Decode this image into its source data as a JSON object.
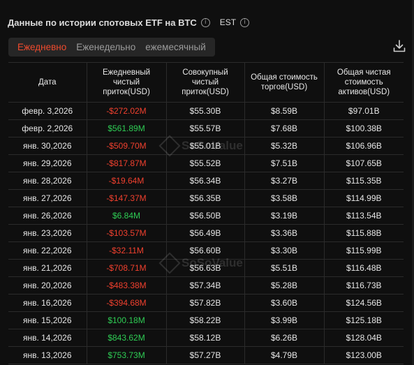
{
  "header": {
    "title": "Данные по истории спотовых ETF на BTC",
    "timezone": "EST"
  },
  "tabs": [
    {
      "label": "Ежедневно",
      "active": true
    },
    {
      "label": "Еженедельно",
      "active": false
    },
    {
      "label": "ежемесячный",
      "active": false
    }
  ],
  "watermark": "SoSoValue",
  "table": {
    "headers": [
      "Дата",
      "Ежедневный чистый приток(USD)",
      "Совокупный чистый приток(USD)",
      "Общая стоимость торгов(USD)",
      "Общая чистая стоимость активов(USD)"
    ],
    "rows": [
      {
        "date": "февр. 3,2026",
        "daily": "-$272.02M",
        "dir": "neg",
        "cum": "$55.30B",
        "traded": "$8.59B",
        "assets": "$97.01B"
      },
      {
        "date": "февр. 2,2026",
        "daily": "$561.89M",
        "dir": "pos",
        "cum": "$55.57B",
        "traded": "$7.68B",
        "assets": "$100.38B"
      },
      {
        "date": "янв. 30,2026",
        "daily": "-$509.70M",
        "dir": "neg",
        "cum": "$55.01B",
        "traded": "$5.32B",
        "assets": "$106.96B"
      },
      {
        "date": "янв. 29,2026",
        "daily": "-$817.87M",
        "dir": "neg",
        "cum": "$55.52B",
        "traded": "$7.51B",
        "assets": "$107.65B"
      },
      {
        "date": "янв. 28,2026",
        "daily": "-$19.64M",
        "dir": "neg",
        "cum": "$56.34B",
        "traded": "$3.27B",
        "assets": "$115.35B"
      },
      {
        "date": "янв. 27,2026",
        "daily": "-$147.37M",
        "dir": "neg",
        "cum": "$56.35B",
        "traded": "$3.58B",
        "assets": "$114.99B"
      },
      {
        "date": "янв. 26,2026",
        "daily": "$6.84M",
        "dir": "pos",
        "cum": "$56.50B",
        "traded": "$3.19B",
        "assets": "$113.54B"
      },
      {
        "date": "янв. 23,2026",
        "daily": "-$103.57M",
        "dir": "neg",
        "cum": "$56.49B",
        "traded": "$3.36B",
        "assets": "$115.88B"
      },
      {
        "date": "янв. 22,2026",
        "daily": "-$32.11M",
        "dir": "neg",
        "cum": "$56.60B",
        "traded": "$3.30B",
        "assets": "$115.99B"
      },
      {
        "date": "янв. 21,2026",
        "daily": "-$708.71M",
        "dir": "neg",
        "cum": "$56.63B",
        "traded": "$5.51B",
        "assets": "$116.48B"
      },
      {
        "date": "янв. 20,2026",
        "daily": "-$483.38M",
        "dir": "neg",
        "cum": "$57.34B",
        "traded": "$5.28B",
        "assets": "$116.73B"
      },
      {
        "date": "янв. 16,2026",
        "daily": "-$394.68M",
        "dir": "neg",
        "cum": "$57.82B",
        "traded": "$3.60B",
        "assets": "$124.56B"
      },
      {
        "date": "янв. 15,2026",
        "daily": "$100.18M",
        "dir": "pos",
        "cum": "$58.22B",
        "traded": "$3.99B",
        "assets": "$125.18B"
      },
      {
        "date": "янв. 14,2026",
        "daily": "$843.62M",
        "dir": "pos",
        "cum": "$58.12B",
        "traded": "$6.26B",
        "assets": "$128.04B"
      },
      {
        "date": "янв. 13,2026",
        "daily": "$753.73M",
        "dir": "pos",
        "cum": "$57.27B",
        "traded": "$4.79B",
        "assets": "$123.00B"
      }
    ]
  },
  "colors": {
    "accent": "#f04b2e",
    "positive": "#2ecc54",
    "negative": "#f0402e"
  },
  "icons": {
    "info": "info-circle-icon",
    "download": "download-icon"
  }
}
